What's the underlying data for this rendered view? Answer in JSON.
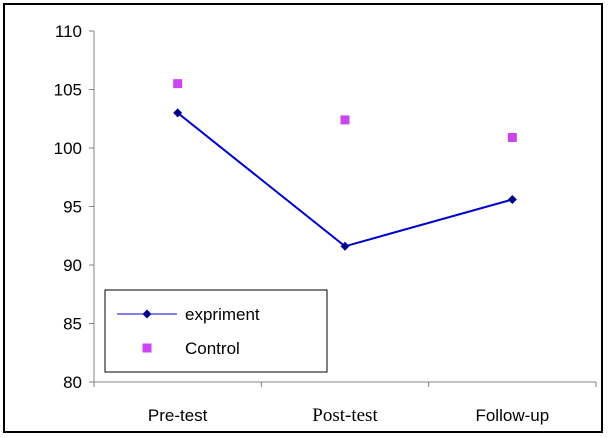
{
  "chart_data": {
    "type": "line",
    "categories": [
      "Pre-test",
      "Post-test",
      "Follow-up"
    ],
    "ylim": [
      80,
      110
    ],
    "yticks": [
      80,
      85,
      90,
      95,
      100,
      105,
      110
    ],
    "grid": false,
    "legend_position": "bottom-left",
    "series": [
      {
        "name": "expriment",
        "values": [
          103,
          91.6,
          95.6
        ],
        "color": "#0000cc",
        "marker": "diamond",
        "line": true
      },
      {
        "name": "Control",
        "values": [
          105.5,
          102.4,
          100.9
        ],
        "color": "#cc44ee",
        "marker": "square",
        "line": false
      }
    ]
  }
}
